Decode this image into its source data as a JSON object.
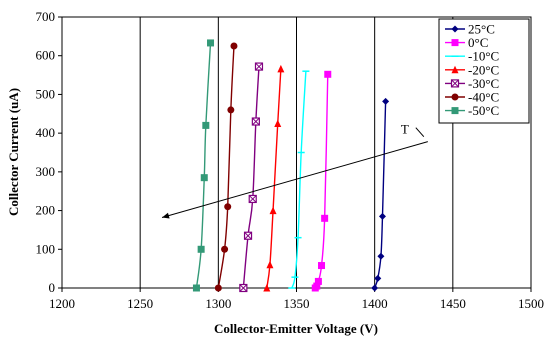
{
  "chart_data": {
    "type": "line",
    "title": "",
    "xlabel": "Collector-Emitter Voltage (V)",
    "ylabel": "Collector Current  (uA)",
    "xlim": [
      1200,
      1500
    ],
    "ylim": [
      0,
      700
    ],
    "xticks": [
      1200,
      1250,
      1300,
      1350,
      1400,
      1450,
      1500
    ],
    "yticks": [
      0,
      100,
      200,
      300,
      400,
      500,
      600,
      700
    ],
    "grid": "vertical",
    "legend_position": "top-right",
    "annotation": {
      "text": "T",
      "arrow_from": [
        1434,
        378
      ],
      "arrow_to": [
        1264,
        182
      ]
    },
    "series": [
      {
        "name": "25°C",
        "color": "#000080",
        "marker": "diamond",
        "x": [
          1400,
          1402,
          1404,
          1405,
          1407
        ],
        "y": [
          0,
          25,
          82,
          185,
          482
        ]
      },
      {
        "name": "0°C",
        "color": "#ff00ff",
        "marker": "square",
        "x": [
          1362,
          1363,
          1364,
          1366,
          1368,
          1370
        ],
        "y": [
          0,
          5,
          17,
          58,
          180,
          552
        ]
      },
      {
        "name": "-10°C",
        "color": "#00ffff",
        "marker": "tick",
        "x": [
          1347,
          1349,
          1351,
          1353,
          1356
        ],
        "y": [
          0,
          28,
          130,
          350,
          560
        ]
      },
      {
        "name": "-20°C",
        "color": "#ff0000",
        "marker": "triangle",
        "x": [
          1331,
          1333,
          1335,
          1338,
          1340
        ],
        "y": [
          0,
          60,
          200,
          425,
          566
        ]
      },
      {
        "name": "-30°C",
        "color": "#800080",
        "marker": "square-x",
        "x": [
          1316,
          1319,
          1322,
          1324,
          1326
        ],
        "y": [
          0,
          135,
          230,
          430,
          572
        ]
      },
      {
        "name": "-40°C",
        "color": "#800000",
        "marker": "circle",
        "x": [
          1300,
          1304,
          1306,
          1308,
          1310
        ],
        "y": [
          0,
          100,
          210,
          460,
          625
        ]
      },
      {
        "name": "-50°C",
        "color": "#339977",
        "marker": "square",
        "x": [
          1286,
          1289,
          1291,
          1292,
          1295
        ],
        "y": [
          0,
          100,
          285,
          420,
          633
        ]
      }
    ]
  }
}
